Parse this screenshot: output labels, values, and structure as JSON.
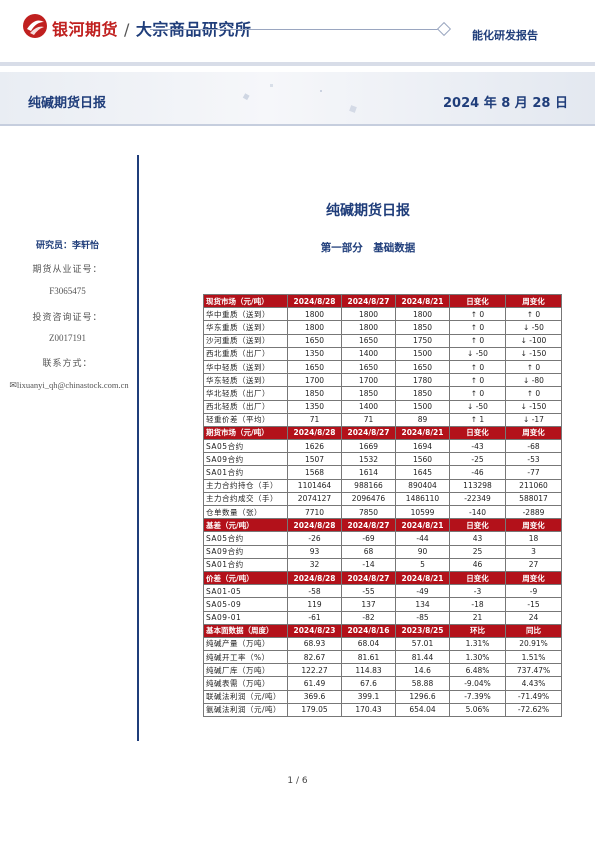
{
  "header": {
    "brand": "银河期货",
    "divider": "/",
    "institute": "大宗商品研究所",
    "report_type": "能化研发报告"
  },
  "banner": {
    "title": "纯碱期货日报",
    "date": "2024 年 8 月 28 日"
  },
  "sidebar": {
    "analyst": "研究员：李轩怡",
    "license_label": "期货从业证号：",
    "license_value": "F3065475",
    "consult_label": "投资咨询证号：",
    "consult_value": "Z0017191",
    "contact_label": "联系方式：",
    "email_icon": "envelope-icon",
    "email": "lixuanyi_qh@chinastock.com.cn"
  },
  "main": {
    "title": "纯碱期货日报",
    "section": "第一部分　基础数据"
  },
  "table": {
    "header_color": "#b3111a",
    "sections": [
      {
        "header": [
          "现货市场（元/吨）",
          "2024/8/28",
          "2024/8/27",
          "2024/8/21",
          "日变化",
          "周变化"
        ],
        "rows": [
          [
            "华中重质（送到）",
            "1800",
            "1800",
            "1800",
            "↑ 0",
            "↑ 0"
          ],
          [
            "华东重质（送到）",
            "1800",
            "1800",
            "1850",
            "↑ 0",
            "↓ -50"
          ],
          [
            "沙河重质（送到）",
            "1650",
            "1650",
            "1750",
            "↑ 0",
            "↓ -100"
          ],
          [
            "西北重质（出厂）",
            "1350",
            "1400",
            "1500",
            "↓ -50",
            "↓ -150"
          ],
          [
            "华中轻质（送到）",
            "1650",
            "1650",
            "1650",
            "↑ 0",
            "↑ 0"
          ],
          [
            "华东轻质（送到）",
            "1700",
            "1700",
            "1780",
            "↑ 0",
            "↓ -80"
          ],
          [
            "华北轻质（出厂）",
            "1850",
            "1850",
            "1850",
            "↑ 0",
            "↑ 0"
          ],
          [
            "西北轻质（出厂）",
            "1350",
            "1400",
            "1500",
            "↓ -50",
            "↓ -150"
          ],
          [
            "轻重价差（平均）",
            "71",
            "71",
            "89",
            "↑ 1",
            "↓ -17"
          ]
        ]
      },
      {
        "header": [
          "期货市场（元/吨）",
          "2024/8/28",
          "2024/8/27",
          "2024/8/21",
          "日变化",
          "周变化"
        ],
        "rows": [
          [
            "SA05合约",
            "1626",
            "1669",
            "1694",
            "-43",
            "-68"
          ],
          [
            "SA09合约",
            "1507",
            "1532",
            "1560",
            "-25",
            "-53"
          ],
          [
            "SA01合约",
            "1568",
            "1614",
            "1645",
            "-46",
            "-77"
          ],
          [
            "主力合约持仓（手）",
            "1101464",
            "988166",
            "890404",
            "113298",
            "211060"
          ],
          [
            "主力合约成交（手）",
            "2074127",
            "2096476",
            "1486110",
            "-22349",
            "588017"
          ],
          [
            "仓单数量（张）",
            "7710",
            "7850",
            "10599",
            "-140",
            "-2889"
          ]
        ]
      },
      {
        "header": [
          "基差（元/吨）",
          "2024/8/28",
          "2024/8/27",
          "2024/8/21",
          "日变化",
          "周变化"
        ],
        "rows": [
          [
            "SA05合约",
            "-26",
            "-69",
            "-44",
            "43",
            "18"
          ],
          [
            "SA09合约",
            "93",
            "68",
            "90",
            "25",
            "3"
          ],
          [
            "SA01合约",
            "32",
            "-14",
            "5",
            "46",
            "27"
          ]
        ]
      },
      {
        "header": [
          "价差（元/吨）",
          "2024/8/28",
          "2024/8/27",
          "2024/8/21",
          "日变化",
          "周变化"
        ],
        "rows": [
          [
            "SA01-05",
            "-58",
            "-55",
            "-49",
            "-3",
            "-9"
          ],
          [
            "SA05-09",
            "119",
            "137",
            "134",
            "-18",
            "-15"
          ],
          [
            "SA09-01",
            "-61",
            "-82",
            "-85",
            "21",
            "24"
          ]
        ]
      },
      {
        "header": [
          "基本面数据（周度）",
          "2024/8/23",
          "2024/8/16",
          "2023/8/25",
          "环比",
          "同比"
        ],
        "rows": [
          [
            "纯碱产量（万吨）",
            "68.93",
            "68.04",
            "57.01",
            "1.31%",
            "20.91%"
          ],
          [
            "纯碱开工率（%）",
            "82.67",
            "81.61",
            "81.44",
            "1.30%",
            "1.51%"
          ],
          [
            "纯碱厂库（万吨）",
            "122.27",
            "114.83",
            "14.6",
            "6.48%",
            "737.47%"
          ],
          [
            "纯碱表需（万吨）",
            "61.49",
            "67.6",
            "58.88",
            "-9.04%",
            "4.43%"
          ],
          [
            "联碱法利润（元/吨）",
            "369.6",
            "399.1",
            "1296.6",
            "-7.39%",
            "-71.49%"
          ],
          [
            "氨碱法利润（元/吨）",
            "179.05",
            "170.43",
            "654.04",
            "5.06%",
            "-72.62%"
          ]
        ]
      }
    ]
  },
  "footer": {
    "page": "1 / 6"
  }
}
